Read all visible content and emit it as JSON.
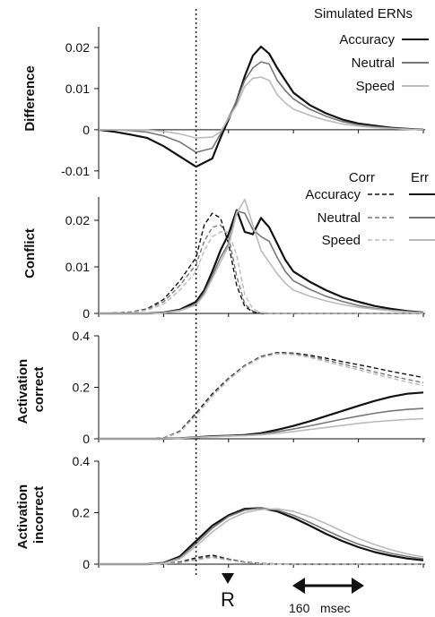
{
  "chart_data": [
    {
      "type": "line",
      "ylabel": "Difference",
      "ylim": [
        -0.012,
        0.025
      ],
      "yticks": [
        -0.01,
        0,
        0.01,
        0.02
      ],
      "ytick_labels": [
        "-0.01",
        "0",
        "0.01",
        "0.02"
      ],
      "legend_title": "Simulated ERNs",
      "legend_columns": [],
      "x": [
        0,
        40,
        80,
        120,
        160,
        200,
        240,
        280,
        300,
        340,
        360,
        380,
        400,
        420,
        440,
        460,
        480,
        520,
        560,
        600,
        640,
        680,
        720,
        760,
        800
      ],
      "series": [
        {
          "name": "Accuracy",
          "color": "#111111",
          "dash": "solid",
          "values": [
            0,
            -0.0005,
            -0.0012,
            -0.002,
            -0.004,
            -0.0065,
            -0.009,
            -0.007,
            -0.002,
            0.007,
            0.013,
            0.018,
            0.0202,
            0.0185,
            0.015,
            0.012,
            0.009,
            0.006,
            0.004,
            0.0025,
            0.0015,
            0.001,
            0.0005,
            0.0002,
            0
          ]
        },
        {
          "name": "Neutral",
          "color": "#777777",
          "dash": "solid",
          "values": [
            0,
            0,
            -0.0002,
            -0.0006,
            -0.0015,
            -0.003,
            -0.0055,
            -0.0045,
            -0.001,
            0.007,
            0.012,
            0.015,
            0.0165,
            0.016,
            0.012,
            0.0095,
            0.0075,
            0.005,
            0.0033,
            0.002,
            0.0012,
            0.0007,
            0.0004,
            0.0002,
            0
          ]
        },
        {
          "name": "Speed",
          "color": "#bbbbbb",
          "dash": "solid",
          "values": [
            0,
            0,
            0,
            -0.0001,
            -0.0004,
            -0.001,
            -0.002,
            -0.0018,
            -0.0005,
            0.006,
            0.0105,
            0.0125,
            0.0128,
            0.012,
            0.0085,
            0.0065,
            0.005,
            0.0035,
            0.0023,
            0.0014,
            0.0009,
            0.0005,
            0.0003,
            0.0001,
            0
          ]
        }
      ]
    },
    {
      "type": "line",
      "ylabel": "Conflict",
      "ylim": [
        0,
        0.025
      ],
      "yticks": [
        0,
        0.01,
        0.02
      ],
      "ytick_labels": [
        "0",
        "0.01",
        "0.02"
      ],
      "legend_columns": [
        "Corr",
        "Err"
      ],
      "x": [
        0,
        40,
        80,
        120,
        160,
        200,
        240,
        260,
        280,
        300,
        320,
        340,
        360,
        380,
        400,
        420,
        440,
        460,
        480,
        520,
        560,
        600,
        640,
        680,
        720,
        760,
        800
      ],
      "series": [
        {
          "name": "Accuracy",
          "color": "#111111",
          "dash": "dashed",
          "values": [
            0,
            0.0001,
            0.0003,
            0.001,
            0.003,
            0.007,
            0.012,
            0.019,
            0.0215,
            0.0205,
            0.015,
            0.006,
            0.0015,
            0.0003,
            0,
            0,
            0,
            0,
            0,
            0,
            0,
            0,
            0,
            0,
            0,
            0,
            0
          ]
        },
        {
          "name": "Neutral",
          "color": "#777777",
          "dash": "dashed",
          "values": [
            0,
            0.0001,
            0.0003,
            0.0009,
            0.0025,
            0.006,
            0.0105,
            0.0155,
            0.0185,
            0.019,
            0.0165,
            0.008,
            0.002,
            0.0005,
            0.0001,
            0,
            0,
            0,
            0,
            0,
            0,
            0,
            0,
            0,
            0,
            0,
            0
          ]
        },
        {
          "name": "Speed",
          "color": "#bbbbbb",
          "dash": "dashed",
          "values": [
            0,
            0.0001,
            0.0002,
            0.0007,
            0.002,
            0.005,
            0.009,
            0.0135,
            0.0165,
            0.0175,
            0.0175,
            0.0125,
            0.004,
            0.001,
            0.0002,
            0,
            0,
            0,
            0,
            0,
            0,
            0,
            0,
            0,
            0,
            0,
            0
          ]
        },
        {
          "name": "Accuracy",
          "color": "#111111",
          "dash": "solid",
          "values": [
            0,
            0,
            0,
            0,
            0.0002,
            0.0008,
            0.0025,
            0.005,
            0.009,
            0.0135,
            0.017,
            0.0222,
            0.0175,
            0.017,
            0.0205,
            0.0185,
            0.015,
            0.0115,
            0.009,
            0.0068,
            0.005,
            0.0035,
            0.0025,
            0.0016,
            0.001,
            0.0005,
            0.0002
          ]
        },
        {
          "name": "Neutral",
          "color": "#777777",
          "dash": "solid",
          "values": [
            0,
            0,
            0,
            0,
            0.0002,
            0.0007,
            0.002,
            0.0045,
            0.008,
            0.012,
            0.015,
            0.022,
            0.0215,
            0.018,
            0.0165,
            0.0155,
            0.012,
            0.009,
            0.007,
            0.0052,
            0.0037,
            0.0026,
            0.0017,
            0.0011,
            0.0007,
            0.0004,
            0.0002
          ]
        },
        {
          "name": "Speed",
          "color": "#bbbbbb",
          "dash": "solid",
          "values": [
            0,
            0,
            0,
            0,
            0.0001,
            0.0006,
            0.0018,
            0.004,
            0.0075,
            0.011,
            0.0145,
            0.0215,
            0.0245,
            0.019,
            0.0135,
            0.011,
            0.0085,
            0.0065,
            0.005,
            0.0037,
            0.0027,
            0.0019,
            0.0013,
            0.0009,
            0.0006,
            0.0003,
            0.0001
          ]
        }
      ]
    },
    {
      "type": "line",
      "ylabel": "Activation correct",
      "ylim": [
        0,
        0.4
      ],
      "yticks": [
        0,
        0.2,
        0.4
      ],
      "ytick_labels": [
        "0",
        "0.2",
        "0.4"
      ],
      "x": [
        0,
        40,
        80,
        120,
        160,
        200,
        240,
        280,
        320,
        360,
        400,
        440,
        480,
        520,
        560,
        600,
        640,
        680,
        720,
        760,
        800
      ],
      "series": [
        {
          "name": "Accuracy",
          "color": "#111111",
          "dash": "dashed",
          "values": [
            0,
            0,
            0,
            0,
            0.003,
            0.03,
            0.1,
            0.175,
            0.235,
            0.285,
            0.32,
            0.335,
            0.333,
            0.325,
            0.313,
            0.3,
            0.288,
            0.275,
            0.262,
            0.25,
            0.238
          ]
        },
        {
          "name": "Neutral",
          "color": "#777777",
          "dash": "dashed",
          "values": [
            0,
            0,
            0,
            0,
            0.003,
            0.028,
            0.095,
            0.17,
            0.232,
            0.283,
            0.318,
            0.333,
            0.33,
            0.32,
            0.306,
            0.291,
            0.276,
            0.26,
            0.245,
            0.231,
            0.218
          ]
        },
        {
          "name": "Speed",
          "color": "#bbbbbb",
          "dash": "dashed",
          "values": [
            0,
            0,
            0,
            0,
            0.002,
            0.025,
            0.09,
            0.165,
            0.228,
            0.28,
            0.315,
            0.33,
            0.327,
            0.316,
            0.3,
            0.284,
            0.268,
            0.252,
            0.236,
            0.221,
            0.207
          ]
        },
        {
          "name": "Accuracy",
          "color": "#111111",
          "dash": "solid",
          "values": [
            0,
            0,
            0,
            0,
            0,
            0.002,
            0.006,
            0.01,
            0.012,
            0.015,
            0.022,
            0.035,
            0.05,
            0.068,
            0.088,
            0.108,
            0.128,
            0.147,
            0.163,
            0.175,
            0.18
          ]
        },
        {
          "name": "Neutral",
          "color": "#777777",
          "dash": "solid",
          "values": [
            0,
            0,
            0,
            0,
            0,
            0.002,
            0.006,
            0.009,
            0.011,
            0.013,
            0.018,
            0.027,
            0.038,
            0.05,
            0.063,
            0.076,
            0.088,
            0.099,
            0.108,
            0.114,
            0.118
          ]
        },
        {
          "name": "Speed",
          "color": "#bbbbbb",
          "dash": "solid",
          "values": [
            0,
            0,
            0,
            0,
            0,
            0.002,
            0.005,
            0.008,
            0.01,
            0.012,
            0.015,
            0.021,
            0.028,
            0.036,
            0.044,
            0.052,
            0.06,
            0.066,
            0.071,
            0.075,
            0.078
          ]
        }
      ]
    },
    {
      "type": "line",
      "ylabel": "Activation incorrect",
      "ylim": [
        0,
        0.4
      ],
      "yticks": [
        0,
        0.2,
        0.4
      ],
      "ytick_labels": [
        "0",
        "0.2",
        "0.4"
      ],
      "x": [
        0,
        40,
        80,
        120,
        160,
        200,
        240,
        280,
        320,
        360,
        400,
        440,
        480,
        520,
        560,
        600,
        640,
        680,
        720,
        760,
        800
      ],
      "series": [
        {
          "name": "Accuracy",
          "color": "#111111",
          "dash": "dashed",
          "values": [
            0,
            0,
            0,
            0,
            0.002,
            0.008,
            0.025,
            0.035,
            0.02,
            0.008,
            0.003,
            0.001,
            0,
            0,
            0,
            0,
            0,
            0,
            0,
            0,
            0
          ]
        },
        {
          "name": "Neutral",
          "color": "#777777",
          "dash": "dashed",
          "values": [
            0,
            0,
            0,
            0,
            0.001,
            0.006,
            0.02,
            0.03,
            0.018,
            0.007,
            0.002,
            0.001,
            0,
            0,
            0,
            0,
            0,
            0,
            0,
            0,
            0
          ]
        },
        {
          "name": "Speed",
          "color": "#bbbbbb",
          "dash": "dashed",
          "values": [
            0,
            0,
            0,
            0,
            0.001,
            0.005,
            0.016,
            0.025,
            0.015,
            0.006,
            0.002,
            0.001,
            0,
            0,
            0,
            0,
            0,
            0,
            0,
            0,
            0
          ]
        },
        {
          "name": "Accuracy",
          "color": "#111111",
          "dash": "solid",
          "values": [
            0,
            0,
            0,
            0,
            0.005,
            0.03,
            0.09,
            0.15,
            0.19,
            0.215,
            0.218,
            0.205,
            0.18,
            0.15,
            0.118,
            0.09,
            0.066,
            0.047,
            0.033,
            0.022,
            0.015
          ]
        },
        {
          "name": "Neutral",
          "color": "#777777",
          "dash": "solid",
          "values": [
            0,
            0,
            0,
            0,
            0.004,
            0.025,
            0.08,
            0.14,
            0.185,
            0.21,
            0.218,
            0.21,
            0.19,
            0.162,
            0.132,
            0.103,
            0.078,
            0.058,
            0.042,
            0.03,
            0.021
          ]
        },
        {
          "name": "Speed",
          "color": "#bbbbbb",
          "dash": "solid",
          "values": [
            0,
            0,
            0,
            0,
            0.003,
            0.02,
            0.07,
            0.125,
            0.172,
            0.2,
            0.212,
            0.215,
            0.205,
            0.185,
            0.158,
            0.128,
            0.1,
            0.076,
            0.056,
            0.04,
            0.028
          ]
        }
      ]
    }
  ],
  "response_marker": {
    "label": "R",
    "x": 240
  },
  "scale_bar": {
    "label": "160   msec",
    "x_start": 400,
    "x_end": 560
  }
}
